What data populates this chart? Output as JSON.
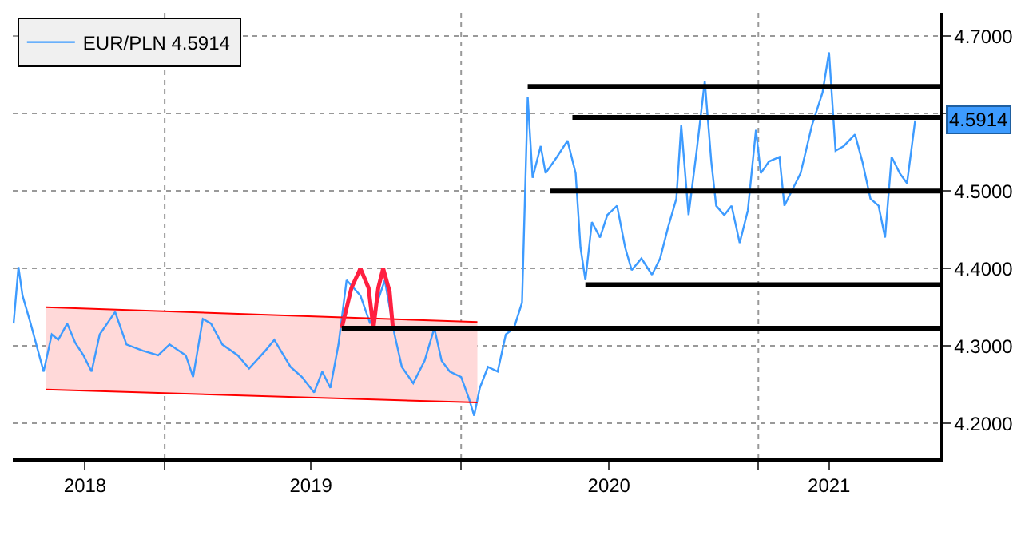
{
  "chart_data": {
    "type": "line",
    "series": [
      {
        "name": "EUR/PLN 4.5914",
        "color": "#3d9bff",
        "x": [
          "2018-06-29",
          "2018-07-05",
          "2018-07-10",
          "2018-07-20",
          "2018-07-28",
          "2018-08-05",
          "2018-08-15",
          "2018-08-23",
          "2018-09-03",
          "2018-09-13",
          "2018-09-23",
          "2018-10-03",
          "2018-10-13",
          "2018-11-01",
          "2018-11-15",
          "2018-12-05",
          "2018-12-24",
          "2019-01-07",
          "2019-01-27",
          "2019-02-05",
          "2019-02-17",
          "2019-02-27",
          "2019-03-13",
          "2019-04-01",
          "2019-04-15",
          "2019-05-05",
          "2019-05-16",
          "2019-06-05",
          "2019-06-19",
          "2019-07-04",
          "2019-07-14",
          "2019-07-24",
          "2019-08-03",
          "2019-08-13",
          "2019-08-30",
          "2019-09-11",
          "2019-09-29",
          "2019-10-11",
          "2019-10-20",
          "2019-11-03",
          "2019-11-17",
          "2019-11-29",
          "2019-12-08",
          "2019-12-18",
          "2020-01-01",
          "2020-01-11",
          "2020-01-17",
          "2020-01-24",
          "2020-02-03",
          "2020-02-15",
          "2020-02-25",
          "2020-03-06",
          "2020-03-16",
          "2020-03-19",
          "2020-03-23",
          "2020-03-29",
          "2020-04-08",
          "2020-04-14",
          "2020-04-28",
          "2020-05-11",
          "2020-05-21",
          "2020-05-27",
          "2020-06-02",
          "2020-06-10",
          "2020-06-20",
          "2020-06-29",
          "2020-07-11",
          "2020-07-21",
          "2020-07-29",
          "2020-08-10",
          "2020-08-23",
          "2020-09-02",
          "2020-09-12",
          "2020-09-22",
          "2020-09-28",
          "2020-10-07",
          "2020-10-17",
          "2020-10-27",
          "2020-11-04",
          "2020-11-10",
          "2020-11-20",
          "2020-11-29",
          "2020-12-09",
          "2020-12-19",
          "2020-12-29",
          "2021-01-04",
          "2021-01-14",
          "2021-01-27",
          "2021-02-02",
          "2021-02-12",
          "2021-02-22",
          "2021-03-08",
          "2021-03-21",
          "2021-03-29",
          "2021-04-06",
          "2021-04-16",
          "2021-04-30",
          "2021-05-09",
          "2021-05-19",
          "2021-05-29",
          "2021-06-06",
          "2021-06-14",
          "2021-06-24",
          "2021-07-03",
          "2021-07-13"
        ],
        "values": [
          4.329,
          4.402,
          4.365,
          4.329,
          4.298,
          4.267,
          4.315,
          4.308,
          4.329,
          4.304,
          4.288,
          4.267,
          4.315,
          4.344,
          4.302,
          4.294,
          4.288,
          4.302,
          4.288,
          4.26,
          4.335,
          4.329,
          4.302,
          4.288,
          4.271,
          4.294,
          4.308,
          4.273,
          4.26,
          4.24,
          4.267,
          4.246,
          4.302,
          4.385,
          4.365,
          4.329,
          4.385,
          4.315,
          4.273,
          4.252,
          4.281,
          4.323,
          4.281,
          4.267,
          4.26,
          4.231,
          4.21,
          4.246,
          4.273,
          4.267,
          4.315,
          4.323,
          4.356,
          4.469,
          4.621,
          4.517,
          4.558,
          4.523,
          4.544,
          4.565,
          4.523,
          4.427,
          4.385,
          4.46,
          4.44,
          4.469,
          4.481,
          4.427,
          4.398,
          4.413,
          4.392,
          4.413,
          4.454,
          4.49,
          4.585,
          4.469,
          4.552,
          4.642,
          4.538,
          4.481,
          4.469,
          4.481,
          4.433,
          4.475,
          4.579,
          4.523,
          4.538,
          4.544,
          4.481,
          4.502,
          4.523,
          4.585,
          4.627,
          4.679,
          4.552,
          4.558,
          4.573,
          4.538,
          4.49,
          4.481,
          4.44,
          4.544,
          4.523,
          4.51,
          4.591
        ]
      },
      {
        "color": "#ff0000",
        "x": [
          "2018-08-08",
          "2020-01-21"
        ],
        "values": [
          4.244,
          4.227
        ],
        "lower": [
          4.244,
          4.227
        ],
        "upper": [
          4.35,
          4.331
        ]
      },
      {
        "color": "#ff0000",
        "x": [
          "2018-08-08",
          "2020-01-21"
        ],
        "values": [
          4.35,
          4.331
        ]
      },
      {
        "color": "#ff2040",
        "x": [
          "2019-08-07",
          "2019-08-19",
          "2019-08-30",
          "2019-09-09",
          "2019-09-15",
          "2019-09-21",
          "2019-09-27",
          "2019-10-05",
          "2019-10-09"
        ],
        "values": [
          4.323,
          4.375,
          4.4,
          4.375,
          4.323,
          4.375,
          4.4,
          4.37,
          4.323
        ]
      },
      {
        "color": "#000000",
        "x": [
          "2019-08-07",
          "2021-08-12"
        ],
        "values": [
          4.323,
          4.323
        ]
      },
      {
        "color": "#000000",
        "x": [
          "2020-03-23",
          "2021-08-12"
        ],
        "values": [
          4.635,
          4.635
        ]
      },
      {
        "color": "#000000",
        "x": [
          "2020-05-17",
          "2021-08-12"
        ],
        "values": [
          4.595,
          4.595
        ]
      },
      {
        "color": "#000000",
        "x": [
          "2020-04-20",
          "2021-08-12"
        ],
        "values": [
          4.5,
          4.5
        ]
      },
      {
        "color": "#000000",
        "x": [
          "2020-06-02",
          "2021-08-12"
        ],
        "values": [
          4.379,
          4.379
        ]
      }
    ],
    "xlim": [
      "2018-06-28",
      "2021-08-12"
    ],
    "xticks": [
      {
        "value": "2018-09-25",
        "label": "2018"
      },
      {
        "value": "2019-01-01",
        "label": null
      },
      {
        "value": "2019-06-30",
        "label": "2019"
      },
      {
        "value": "2020-01-01",
        "label": null
      },
      {
        "value": "2020-07-01",
        "label": "2020"
      },
      {
        "value": "2021-01-01",
        "label": null
      },
      {
        "value": "2021-03-29",
        "label": "2021"
      }
    ],
    "ylim": [
      4.155,
      4.73
    ],
    "yticks": [
      {
        "value": 4.2,
        "label": "4.2000"
      },
      {
        "value": 4.3,
        "label": "4.3000"
      },
      {
        "value": 4.4,
        "label": "4.4000"
      },
      {
        "value": 4.5,
        "label": "4.5000"
      },
      {
        "value": 4.6,
        "label": null
      },
      {
        "value": 4.7,
        "label": "4.7000"
      }
    ],
    "annotations": [
      "4.5914"
    ],
    "grid": true,
    "legend": "top left",
    "marker": "none",
    "line_style": "solid"
  }
}
